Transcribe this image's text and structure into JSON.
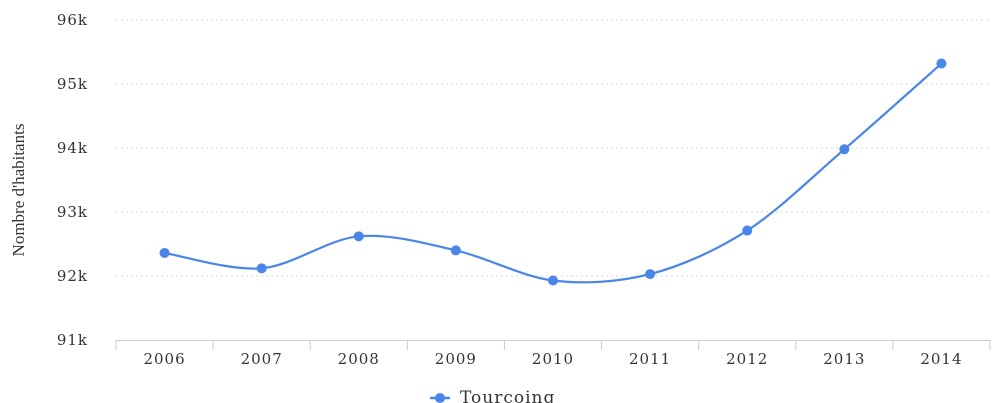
{
  "chart_data": {
    "type": "line",
    "title": "",
    "xlabel": "",
    "ylabel": "Nombre d'habitants",
    "categories": [
      "2006",
      "2007",
      "2008",
      "2009",
      "2010",
      "2011",
      "2012",
      "2013",
      "2014"
    ],
    "series": [
      {
        "name": "Tourcoing",
        "color": "#4a86e8",
        "values": [
          92360,
          92120,
          92620,
          92400,
          91930,
          92030,
          92710,
          93980,
          95320
        ]
      }
    ],
    "ylim": [
      91000,
      96000
    ],
    "yticks": [
      91000,
      92000,
      93000,
      94000,
      95000,
      96000
    ],
    "ytick_labels": [
      "91k",
      "92k",
      "93k",
      "94k",
      "95k",
      "96k"
    ],
    "grid": true,
    "legend": "bottom-center",
    "smooth": true
  }
}
